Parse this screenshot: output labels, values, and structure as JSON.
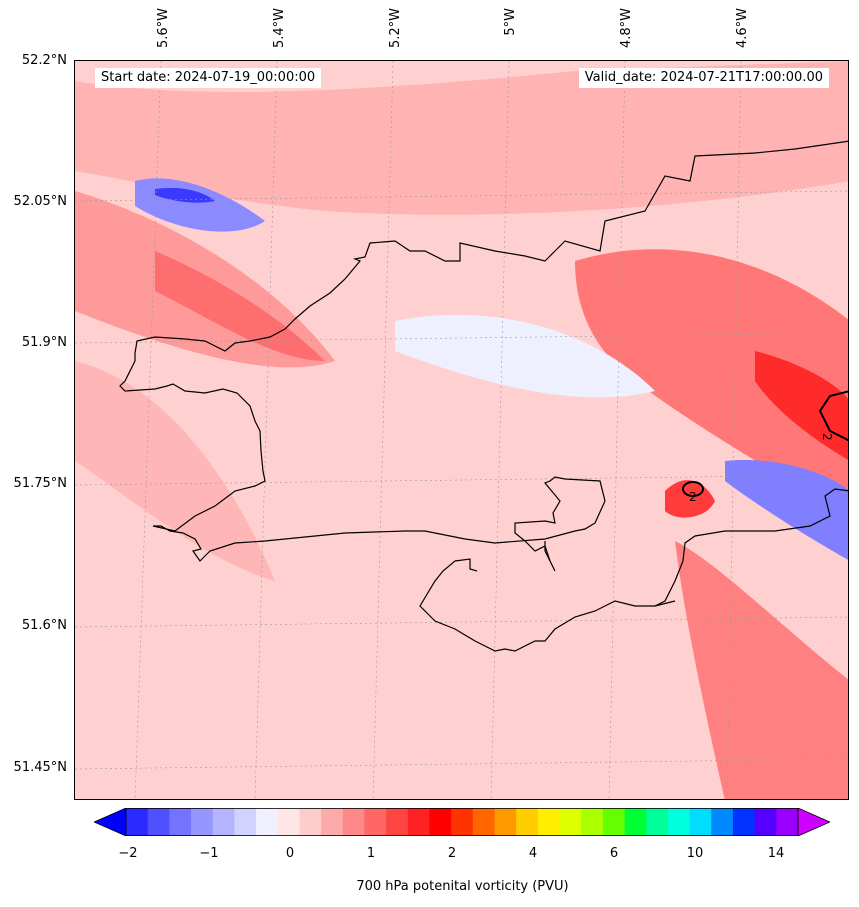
{
  "map": {
    "start_date": "Start date: 2024-07-19_00:00:00",
    "valid_date": "Valid_date: 2024-07-21T17:00:00.00",
    "lat_labels": [
      "52.2°N",
      "52.05°N",
      "51.9°N",
      "51.75°N",
      "51.6°N",
      "51.45°N"
    ],
    "lon_labels": [
      "5.6°W",
      "5.4°W",
      "5.2°W",
      "5°W",
      "4.8°W",
      "4.6°W"
    ],
    "contour_labels": [
      "2",
      "2"
    ],
    "colors": {
      "coastline": "#000000",
      "background_shade": "#ffd6d6"
    }
  },
  "colorbar": {
    "label": "700 hPa potenital vorticity (PVU)",
    "tick_labels": [
      "−2",
      "−1",
      "0",
      "1",
      "2",
      "4",
      "6",
      "10",
      "14"
    ],
    "colors": [
      "#0000ff",
      "#2b2bff",
      "#5050ff",
      "#7373ff",
      "#9696ff",
      "#b4b4ff",
      "#d2d2ff",
      "#f0f0ff",
      "#ffe6e6",
      "#ffcccc",
      "#ffaaaa",
      "#ff8888",
      "#ff6666",
      "#ff4444",
      "#ff2222",
      "#ff0000",
      "#ff3300",
      "#ff6600",
      "#ff9900",
      "#ffcc00",
      "#ffee00",
      "#ddff00",
      "#aaff00",
      "#66ff00",
      "#00ff33",
      "#00ff99",
      "#00ffdd",
      "#00ddff",
      "#0088ff",
      "#0033ff",
      "#5500ff",
      "#9900ff",
      "#cc00ff"
    ]
  }
}
